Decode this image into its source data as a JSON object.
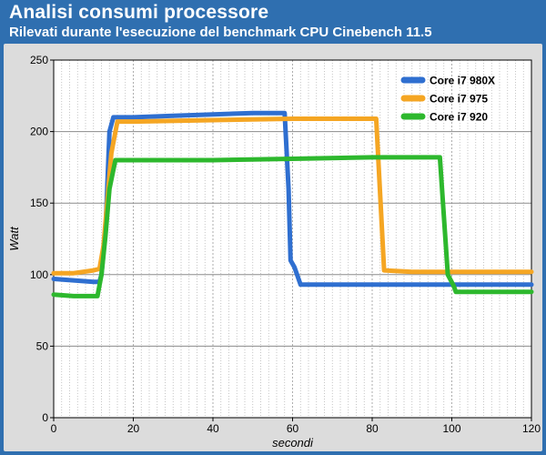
{
  "chart_data": {
    "type": "line",
    "title": "Analisi consumi processore",
    "subtitle": "Rilevati durante l'esecuzione del benchmark CPU Cinebench 11.5",
    "xlabel": "secondi",
    "ylabel": "Watt",
    "xlim": [
      0,
      120
    ],
    "ylim": [
      0,
      250
    ],
    "xticks": [
      0,
      20,
      40,
      60,
      80,
      100,
      120
    ],
    "yticks": [
      0,
      50,
      100,
      150,
      200,
      250
    ],
    "grid": true,
    "legend_position": "top-right",
    "series": [
      {
        "name": "Core i7 980X",
        "color": "#2f6fd0",
        "points": [
          [
            0,
            97
          ],
          [
            5,
            96
          ],
          [
            10,
            95
          ],
          [
            11.5,
            95
          ],
          [
            12,
            100
          ],
          [
            13,
            130
          ],
          [
            14,
            200
          ],
          [
            15,
            210
          ],
          [
            20,
            210
          ],
          [
            30,
            211
          ],
          [
            40,
            212
          ],
          [
            50,
            213
          ],
          [
            58,
            213
          ],
          [
            59,
            160
          ],
          [
            59.5,
            110
          ],
          [
            60.5,
            105
          ],
          [
            62,
            93
          ],
          [
            80,
            93
          ],
          [
            100,
            93
          ],
          [
            120,
            93
          ]
        ]
      },
      {
        "name": "Core i7 975",
        "color": "#f5a623",
        "points": [
          [
            0,
            101
          ],
          [
            5,
            101
          ],
          [
            10,
            103
          ],
          [
            11.5,
            104
          ],
          [
            12.5,
            120
          ],
          [
            14.5,
            185
          ],
          [
            16,
            207
          ],
          [
            20,
            207
          ],
          [
            40,
            208
          ],
          [
            60,
            209
          ],
          [
            81,
            209
          ],
          [
            83,
            103
          ],
          [
            90,
            102
          ],
          [
            100,
            102
          ],
          [
            120,
            102
          ]
        ]
      },
      {
        "name": "Core i7 920",
        "color": "#2db82d",
        "points": [
          [
            0,
            86
          ],
          [
            5,
            85
          ],
          [
            11,
            85
          ],
          [
            12,
            100
          ],
          [
            13,
            127
          ],
          [
            14,
            160
          ],
          [
            15.5,
            180
          ],
          [
            20,
            180
          ],
          [
            40,
            180
          ],
          [
            60,
            181
          ],
          [
            80,
            182
          ],
          [
            97,
            182
          ],
          [
            99,
            100
          ],
          [
            100.5,
            92
          ],
          [
            101,
            88
          ],
          [
            120,
            88
          ]
        ]
      }
    ]
  }
}
